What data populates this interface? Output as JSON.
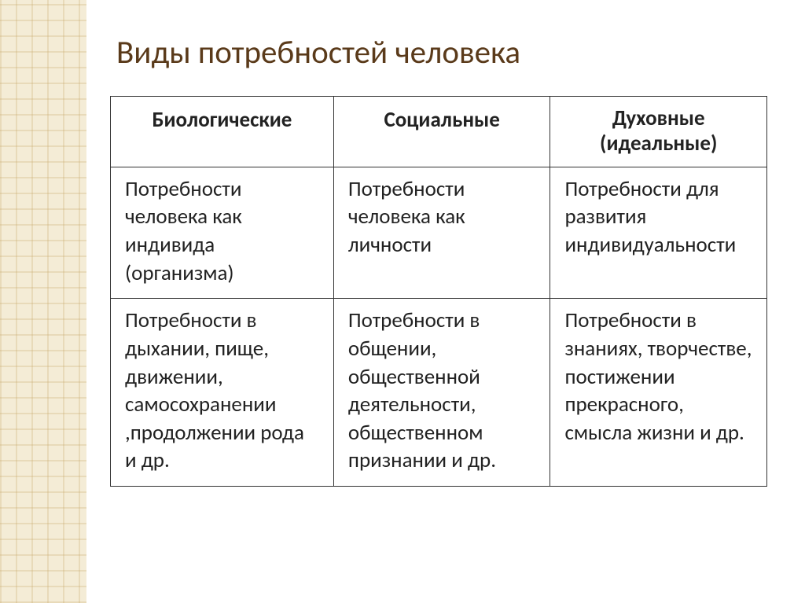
{
  "title": "Виды потребностей человека",
  "title_color": "#5a3a1a",
  "text_color": "#222222",
  "border_color": "#333333",
  "bg_color": "#ffffff",
  "sidebar_bg": "#f4ecd6",
  "sidebar_line_color": "rgba(200,170,110,0.28)",
  "title_fontsize": 41,
  "cell_fontsize": 27,
  "table": {
    "columns": [
      {
        "label": "Биологические",
        "width_pct": 34
      },
      {
        "label": "Социальные",
        "width_pct": 33
      },
      {
        "label": "Духовные (идеальные)",
        "width_pct": 33
      }
    ],
    "rows": [
      [
        "Потребности человека как индивида (организма)",
        "Потребности человека как личности",
        "Потребности для развития индивидуальности"
      ],
      [
        "Потребности в дыхании, пище, движении, самосохранении ,продолжении рода и др.",
        "Потребности в общении, общественной деятельности, общественном признании и др.",
        "Потребности в знаниях, творчестве, постижении прекрасного, смысла жизни и др."
      ]
    ]
  }
}
